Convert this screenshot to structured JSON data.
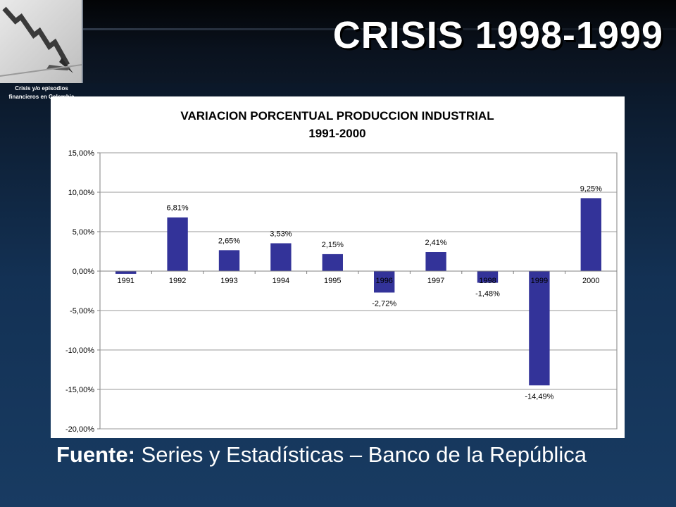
{
  "header": {
    "title": "CRISIS 1998-1999",
    "thumbnail_caption": "Crisis y/o episodios financieros en Colombia"
  },
  "chart_data": {
    "type": "bar",
    "title_line1": "VARIACION PORCENTUAL PRODUCCION INDUSTRIAL",
    "title_line2": "1991-2000",
    "categories": [
      "1991",
      "1992",
      "1993",
      "1994",
      "1995",
      "1996",
      "1997",
      "1998",
      "1999",
      "2000"
    ],
    "values": [
      -0.35,
      6.81,
      2.65,
      3.53,
      2.15,
      -2.72,
      2.41,
      -1.48,
      -14.49,
      9.25
    ],
    "data_labels": [
      "",
      "6,81%",
      "2,65%",
      "3,53%",
      "2,15%",
      "-2,72%",
      "2,41%",
      "-1,48%",
      "-14,49%",
      "9,25%"
    ],
    "ylim": [
      -20,
      15
    ],
    "yticks": [
      15,
      10,
      5,
      0,
      -5,
      -10,
      -15,
      -20
    ],
    "ytick_labels": [
      "15,00%",
      "10,00%",
      "5,00%",
      "0,00%",
      "-5,00%",
      "-10,00%",
      "-15,00%",
      "-20,00%"
    ],
    "bar_color": "#333399",
    "grid": true,
    "legend": false
  },
  "footer": {
    "source_label": "Fuente:",
    "source_text": " Series y Estadísticas – Banco de la República"
  }
}
